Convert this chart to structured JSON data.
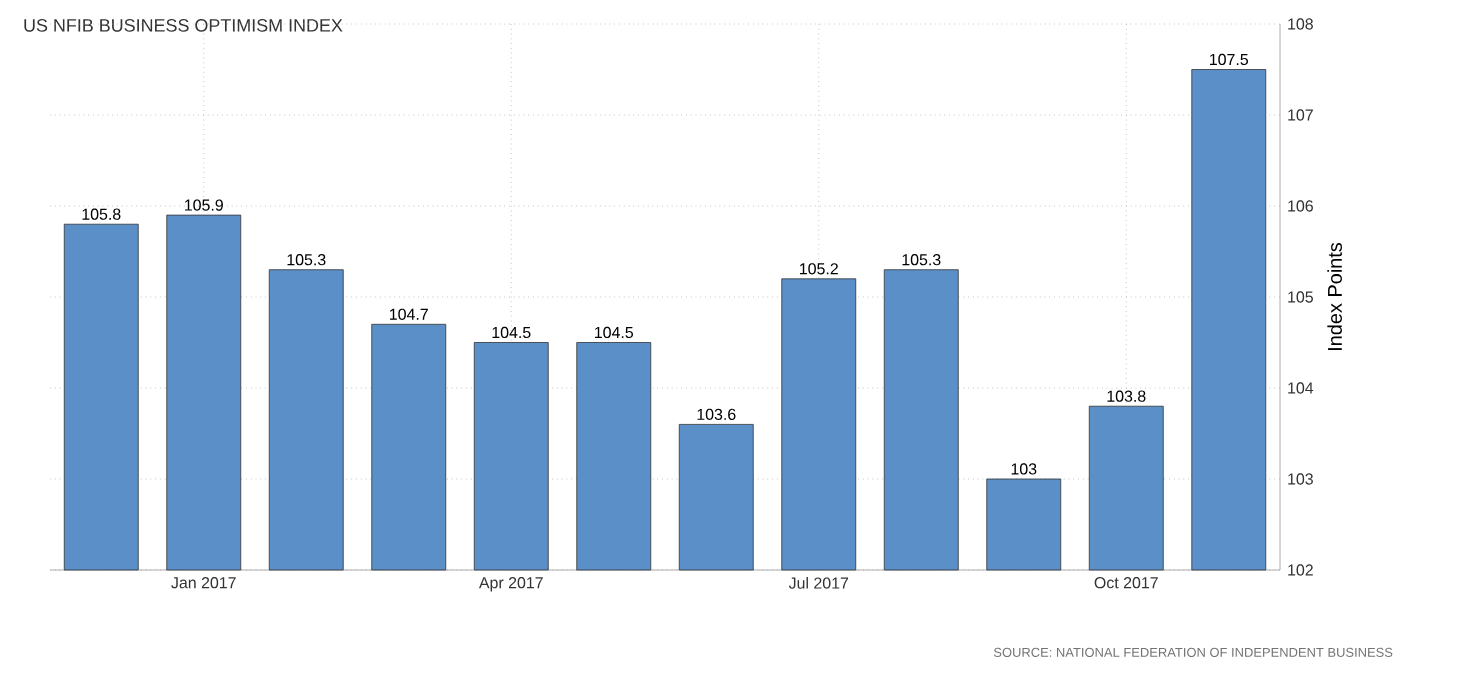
{
  "chart_data": {
    "type": "bar",
    "title": "US NFIB BUSINESS OPTIMISM INDEX",
    "ylabel": "Index Points",
    "categories": [
      null,
      "Jan 2017",
      null,
      null,
      "Apr 2017",
      null,
      null,
      "Jul 2017",
      null,
      null,
      "Oct 2017",
      null
    ],
    "values": [
      105.8,
      105.9,
      105.3,
      104.7,
      104.5,
      104.5,
      103.6,
      105.2,
      105.3,
      103,
      103.8,
      107.5
    ],
    "color": "#5a8fc8",
    "data_labels": true,
    "grid": true,
    "ylim": [
      102,
      108
    ],
    "yticks": [
      102,
      103,
      104,
      105,
      106,
      107,
      108
    ],
    "annotations": [
      "SOURCE: NATIONAL FEDERATION OF INDEPENDENT BUSINESS"
    ]
  }
}
